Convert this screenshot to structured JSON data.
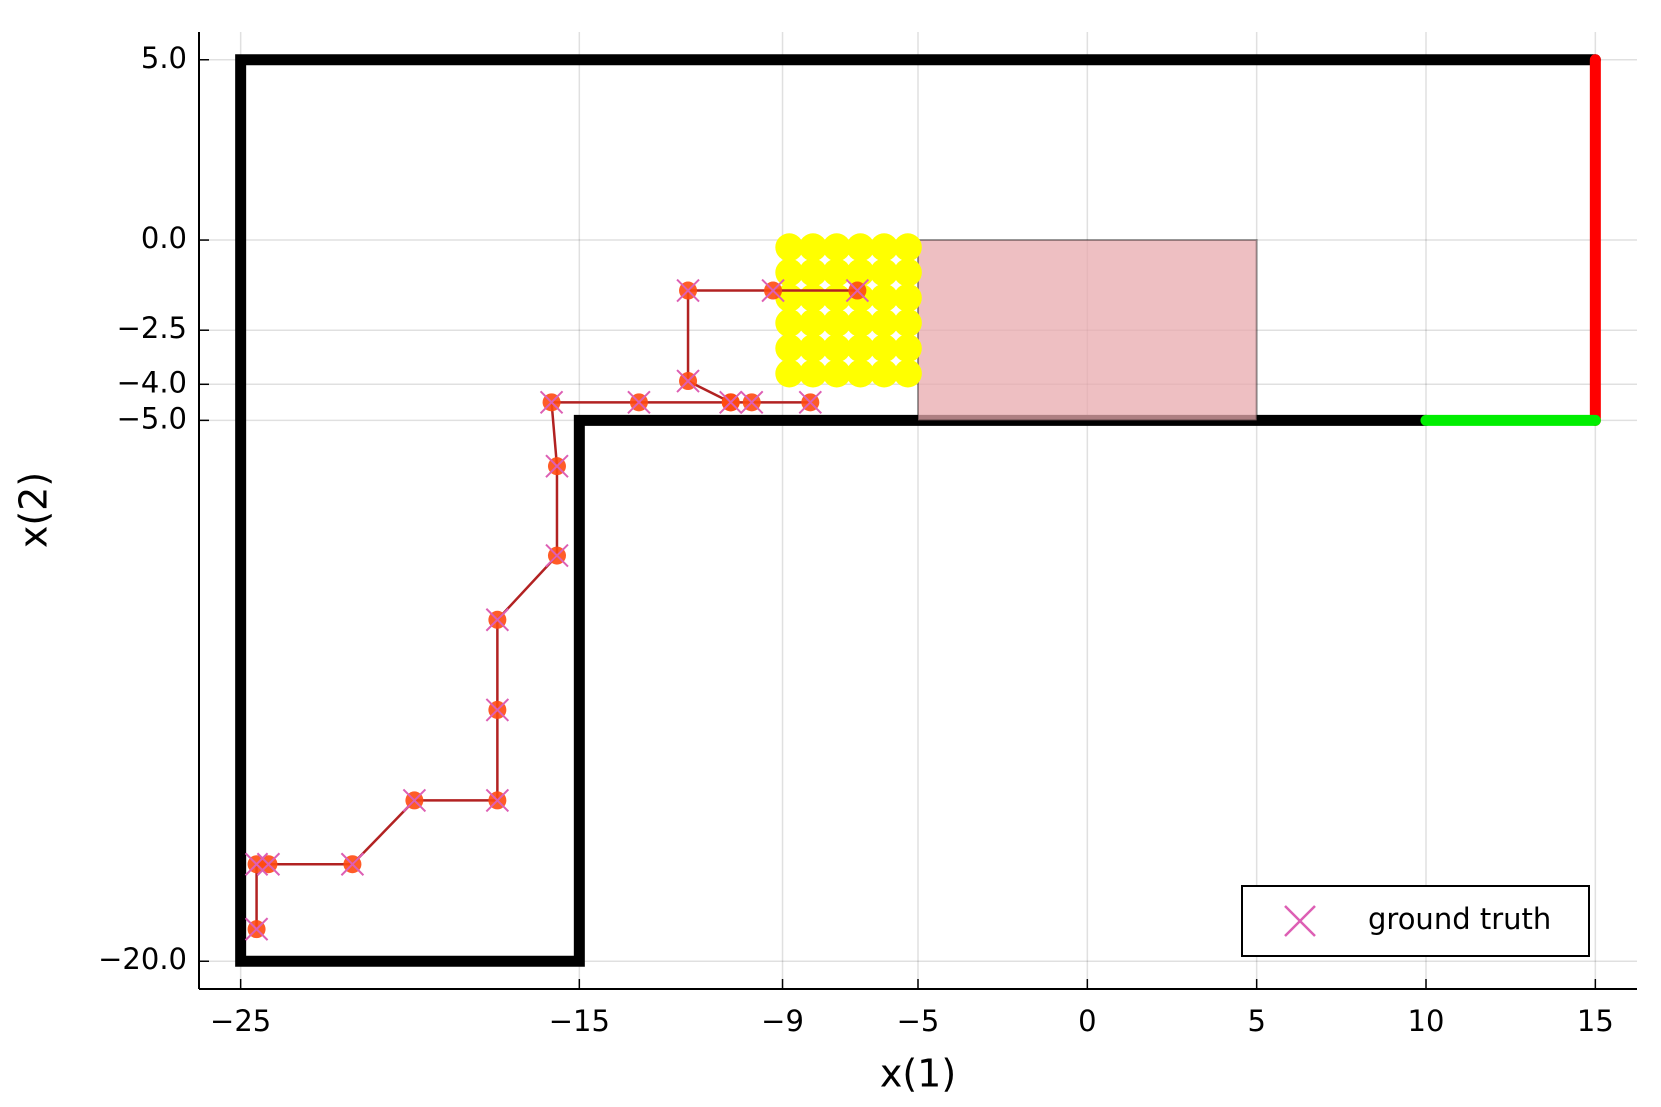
{
  "chart_data": {
    "type": "line",
    "xlabel": "x(1)",
    "ylabel": "x(2)",
    "xlim": [
      -26.23,
      16.23
    ],
    "ylim": [
      -20.77,
      5.77
    ],
    "xticks": [
      {
        "value": -25,
        "label": "−25"
      },
      {
        "value": -15,
        "label": "−15"
      },
      {
        "value": -9,
        "label": "−9"
      },
      {
        "value": -5,
        "label": "−5"
      },
      0,
      5,
      10,
      15
    ],
    "yticks": [
      {
        "value": 5,
        "label": "5.0"
      },
      {
        "value": 0,
        "label": "0.0"
      },
      {
        "value": -2.5,
        "label": "−2.5"
      },
      {
        "value": -4,
        "label": "−4.0"
      },
      {
        "value": -5,
        "label": "−5.0"
      },
      {
        "value": -20,
        "label": "−20.0"
      }
    ],
    "grid": true,
    "legend": "bottom right",
    "series": [
      {
        "style": "line",
        "color": "#000000",
        "width": 11,
        "x": [
          10,
          -15,
          -15,
          -25,
          -25,
          15
        ],
        "y": [
          -5,
          -5,
          -20,
          -20,
          5,
          5
        ]
      },
      {
        "style": "line",
        "color": "#ff0000",
        "width": 11,
        "x": [
          15,
          15
        ],
        "y": [
          5,
          -5
        ]
      },
      {
        "style": "line",
        "color": "#00ee00",
        "width": 11,
        "x": [
          10,
          15
        ],
        "y": [
          -5,
          -5
        ]
      },
      {
        "style": "polygon",
        "color": "#e8a9ad",
        "x": [
          -5,
          5,
          5,
          -5
        ],
        "y": [
          0,
          0,
          -5,
          -5
        ]
      },
      {
        "style": "scatter",
        "color": "#ffff00",
        "x": [
          -8.8,
          -8.1,
          -7.4,
          -6.7,
          -6.0,
          -5.3,
          -8.8,
          -8.1,
          -7.4,
          -6.7,
          -6.0,
          -5.3,
          -8.8,
          -8.1,
          -7.4,
          -6.7,
          -6.0,
          -5.3,
          -8.8,
          -8.1,
          -7.4,
          -6.7,
          -6.0,
          -5.3,
          -8.8,
          -8.1,
          -7.4,
          -6.7,
          -6.0,
          -5.3,
          -8.8,
          -8.1,
          -7.4,
          -6.7,
          -6.0,
          -5.3
        ],
        "y": [
          -0.2,
          -0.2,
          -0.2,
          -0.2,
          -0.2,
          -0.2,
          -0.9,
          -0.9,
          -0.9,
          -0.9,
          -0.9,
          -0.9,
          -1.6,
          -1.6,
          -1.6,
          -1.6,
          -1.6,
          -1.6,
          -2.3,
          -2.3,
          -2.3,
          -2.3,
          -2.3,
          -2.3,
          -3.0,
          -3.0,
          -3.0,
          -3.0,
          -3.0,
          -3.0,
          -3.7,
          -3.7,
          -3.7,
          -3.7,
          -3.7,
          -3.7
        ]
      },
      {
        "style": "line-markers",
        "color": "#b22222",
        "marker_color": "#ff4a10",
        "x": [
          -24.53,
          -24.53,
          -24.18,
          -21.7,
          -19.87,
          -17.42,
          -17.42,
          -17.42,
          -15.66,
          -15.66,
          -15.82,
          -13.24,
          -10.53,
          -9.91,
          -8.18,
          -10.53,
          -11.79,
          -11.79,
          -9.28,
          -6.79
        ],
        "y": [
          -19.11,
          -17.31,
          -17.31,
          -17.31,
          -15.54,
          -15.54,
          -13.03,
          -10.53,
          -8.75,
          -6.27,
          -4.5,
          -4.5,
          -4.5,
          -4.5,
          -4.5,
          -4.5,
          -3.91,
          -1.4,
          -1.4,
          -1.4
        ]
      },
      {
        "style": "x-markers",
        "name": "ground truth",
        "color": "#dd5fb4",
        "x": [
          -24.53,
          -24.53,
          -24.18,
          -21.7,
          -19.87,
          -17.42,
          -17.42,
          -17.42,
          -15.66,
          -15.66,
          -15.82,
          -13.24,
          -10.53,
          -9.91,
          -8.18,
          -11.79,
          -11.79,
          -9.28,
          -6.79
        ],
        "y": [
          -19.11,
          -17.31,
          -17.31,
          -17.31,
          -15.54,
          -15.54,
          -13.03,
          -10.53,
          -8.75,
          -6.27,
          -4.5,
          -4.5,
          -4.5,
          -4.5,
          -4.5,
          -3.91,
          -1.4,
          -1.4,
          -1.4
        ]
      }
    ]
  }
}
